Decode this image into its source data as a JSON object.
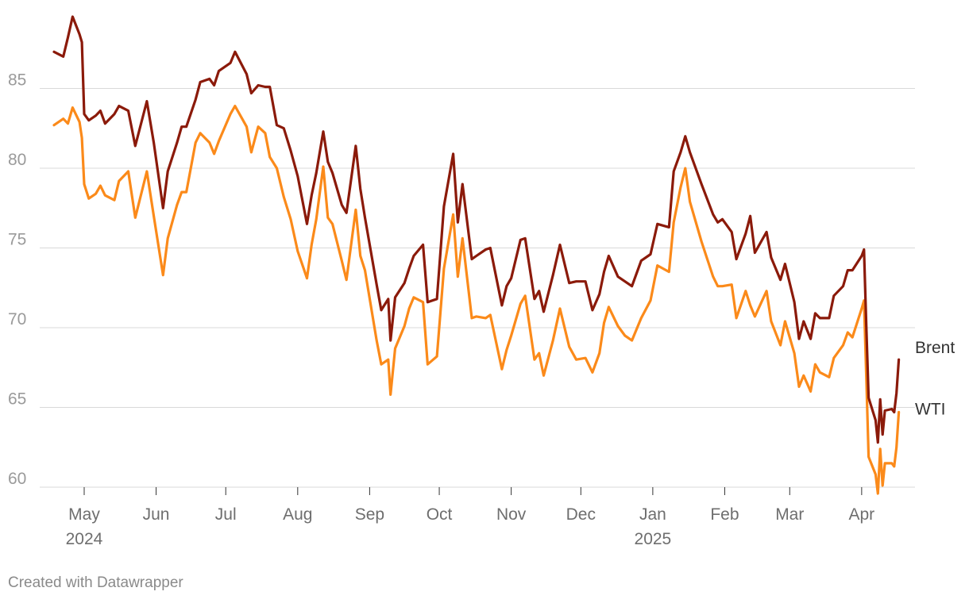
{
  "chart_data": {
    "type": "line",
    "title": "",
    "xlabel": "",
    "ylabel": "",
    "ylim": [
      60,
      88
    ],
    "yticks": [
      60,
      65,
      70,
      75,
      80,
      85
    ],
    "grid": true,
    "x_range": [
      "2024-04-18",
      "2025-04-17"
    ],
    "x_ticks": [
      {
        "date": "2024-05-01",
        "label": "May",
        "sublabel": "2024"
      },
      {
        "date": "2024-06-01",
        "label": "Jun",
        "sublabel": ""
      },
      {
        "date": "2024-07-01",
        "label": "Jul",
        "sublabel": ""
      },
      {
        "date": "2024-08-01",
        "label": "Aug",
        "sublabel": ""
      },
      {
        "date": "2024-09-01",
        "label": "Sep",
        "sublabel": ""
      },
      {
        "date": "2024-10-01",
        "label": "Oct",
        "sublabel": ""
      },
      {
        "date": "2024-11-01",
        "label": "Nov",
        "sublabel": ""
      },
      {
        "date": "2024-12-01",
        "label": "Dec",
        "sublabel": ""
      },
      {
        "date": "2025-01-01",
        "label": "Jan",
        "sublabel": "2025"
      },
      {
        "date": "2025-02-01",
        "label": "Feb",
        "sublabel": ""
      },
      {
        "date": "2025-03-01",
        "label": "Mar",
        "sublabel": ""
      },
      {
        "date": "2025-04-01",
        "label": "Apr",
        "sublabel": ""
      }
    ],
    "legend": "direct labels at line ends (right)",
    "series": [
      {
        "name": "Brent",
        "color": "#8b1a0a",
        "points": [
          [
            "2024-04-18",
            87.3
          ],
          [
            "2024-04-22",
            87.0
          ],
          [
            "2024-04-24",
            88.2
          ],
          [
            "2024-04-26",
            89.5
          ],
          [
            "2024-04-29",
            88.4
          ],
          [
            "2024-04-30",
            87.9
          ],
          [
            "2024-05-01",
            83.4
          ],
          [
            "2024-05-03",
            83.0
          ],
          [
            "2024-05-06",
            83.3
          ],
          [
            "2024-05-08",
            83.6
          ],
          [
            "2024-05-10",
            82.8
          ],
          [
            "2024-05-14",
            83.4
          ],
          [
            "2024-05-16",
            83.9
          ],
          [
            "2024-05-20",
            83.6
          ],
          [
            "2024-05-23",
            81.4
          ],
          [
            "2024-05-28",
            84.2
          ],
          [
            "2024-05-31",
            81.6
          ],
          [
            "2024-06-04",
            77.5
          ],
          [
            "2024-06-06",
            79.8
          ],
          [
            "2024-06-10",
            81.6
          ],
          [
            "2024-06-12",
            82.6
          ],
          [
            "2024-06-14",
            82.6
          ],
          [
            "2024-06-18",
            84.3
          ],
          [
            "2024-06-20",
            85.4
          ],
          [
            "2024-06-24",
            85.6
          ],
          [
            "2024-06-26",
            85.2
          ],
          [
            "2024-06-28",
            86.1
          ],
          [
            "2024-07-03",
            86.6
          ],
          [
            "2024-07-05",
            87.3
          ],
          [
            "2024-07-10",
            85.9
          ],
          [
            "2024-07-12",
            84.7
          ],
          [
            "2024-07-15",
            85.2
          ],
          [
            "2024-07-18",
            85.1
          ],
          [
            "2024-07-20",
            85.1
          ],
          [
            "2024-07-23",
            82.7
          ],
          [
            "2024-07-26",
            82.5
          ],
          [
            "2024-07-29",
            81.1
          ],
          [
            "2024-08-01",
            79.5
          ],
          [
            "2024-08-05",
            76.5
          ],
          [
            "2024-08-07",
            78.3
          ],
          [
            "2024-08-09",
            79.7
          ],
          [
            "2024-08-12",
            82.3
          ],
          [
            "2024-08-14",
            80.4
          ],
          [
            "2024-08-16",
            79.7
          ],
          [
            "2024-08-20",
            77.7
          ],
          [
            "2024-08-22",
            77.2
          ],
          [
            "2024-08-26",
            81.4
          ],
          [
            "2024-08-28",
            78.7
          ],
          [
            "2024-08-30",
            76.9
          ],
          [
            "2024-09-04",
            72.7
          ],
          [
            "2024-09-06",
            71.1
          ],
          [
            "2024-09-09",
            71.8
          ],
          [
            "2024-09-10",
            69.2
          ],
          [
            "2024-09-12",
            71.9
          ],
          [
            "2024-09-16",
            72.8
          ],
          [
            "2024-09-18",
            73.7
          ],
          [
            "2024-09-20",
            74.5
          ],
          [
            "2024-09-24",
            75.2
          ],
          [
            "2024-09-26",
            71.6
          ],
          [
            "2024-09-30",
            71.8
          ],
          [
            "2024-10-03",
            77.6
          ],
          [
            "2024-10-07",
            80.9
          ],
          [
            "2024-10-09",
            76.6
          ],
          [
            "2024-10-11",
            79.0
          ],
          [
            "2024-10-15",
            74.3
          ],
          [
            "2024-10-17",
            74.5
          ],
          [
            "2024-10-21",
            74.9
          ],
          [
            "2024-10-23",
            75.0
          ],
          [
            "2024-10-28",
            71.4
          ],
          [
            "2024-10-30",
            72.6
          ],
          [
            "2024-11-01",
            73.1
          ],
          [
            "2024-11-05",
            75.5
          ],
          [
            "2024-11-07",
            75.6
          ],
          [
            "2024-11-11",
            71.8
          ],
          [
            "2024-11-13",
            72.3
          ],
          [
            "2024-11-15",
            71.0
          ],
          [
            "2024-11-19",
            73.3
          ],
          [
            "2024-11-22",
            75.2
          ],
          [
            "2024-11-26",
            72.8
          ],
          [
            "2024-11-29",
            72.9
          ],
          [
            "2024-12-03",
            72.9
          ],
          [
            "2024-12-06",
            71.1
          ],
          [
            "2024-12-09",
            72.1
          ],
          [
            "2024-12-11",
            73.5
          ],
          [
            "2024-12-13",
            74.5
          ],
          [
            "2024-12-17",
            73.2
          ],
          [
            "2024-12-20",
            72.9
          ],
          [
            "2024-12-23",
            72.6
          ],
          [
            "2024-12-27",
            74.2
          ],
          [
            "2024-12-31",
            74.6
          ],
          [
            "2025-01-03",
            76.5
          ],
          [
            "2025-01-08",
            76.3
          ],
          [
            "2025-01-10",
            79.8
          ],
          [
            "2025-01-13",
            81.0
          ],
          [
            "2025-01-15",
            82.0
          ],
          [
            "2025-01-17",
            81.0
          ],
          [
            "2025-01-22",
            79.0
          ],
          [
            "2025-01-27",
            77.1
          ],
          [
            "2025-01-29",
            76.6
          ],
          [
            "2025-01-31",
            76.8
          ],
          [
            "2025-02-04",
            76.0
          ],
          [
            "2025-02-06",
            74.3
          ],
          [
            "2025-02-10",
            75.9
          ],
          [
            "2025-02-12",
            77.0
          ],
          [
            "2025-02-14",
            74.7
          ],
          [
            "2025-02-19",
            76.0
          ],
          [
            "2025-02-21",
            74.4
          ],
          [
            "2025-02-25",
            73.0
          ],
          [
            "2025-02-27",
            74.0
          ],
          [
            "2025-03-03",
            71.6
          ],
          [
            "2025-03-05",
            69.3
          ],
          [
            "2025-03-07",
            70.4
          ],
          [
            "2025-03-10",
            69.3
          ],
          [
            "2025-03-12",
            70.9
          ],
          [
            "2025-03-14",
            70.6
          ],
          [
            "2025-03-18",
            70.6
          ],
          [
            "2025-03-20",
            72.0
          ],
          [
            "2025-03-24",
            72.6
          ],
          [
            "2025-03-26",
            73.6
          ],
          [
            "2025-03-28",
            73.6
          ],
          [
            "2025-04-01",
            74.5
          ],
          [
            "2025-04-02",
            74.9
          ],
          [
            "2025-04-03",
            70.1
          ],
          [
            "2025-04-04",
            65.6
          ],
          [
            "2025-04-07",
            64.2
          ],
          [
            "2025-04-08",
            62.8
          ],
          [
            "2025-04-09",
            65.5
          ],
          [
            "2025-04-10",
            63.3
          ],
          [
            "2025-04-11",
            64.8
          ],
          [
            "2025-04-14",
            64.9
          ],
          [
            "2025-04-15",
            64.7
          ],
          [
            "2025-04-16",
            65.9
          ],
          [
            "2025-04-17",
            68.0
          ]
        ]
      },
      {
        "name": "WTI",
        "color": "#fb8a1a",
        "points": [
          [
            "2024-04-18",
            82.7
          ],
          [
            "2024-04-22",
            83.1
          ],
          [
            "2024-04-24",
            82.8
          ],
          [
            "2024-04-26",
            83.8
          ],
          [
            "2024-04-29",
            82.9
          ],
          [
            "2024-04-30",
            81.9
          ],
          [
            "2024-05-01",
            79.0
          ],
          [
            "2024-05-03",
            78.1
          ],
          [
            "2024-05-06",
            78.4
          ],
          [
            "2024-05-08",
            78.9
          ],
          [
            "2024-05-10",
            78.3
          ],
          [
            "2024-05-14",
            78.0
          ],
          [
            "2024-05-16",
            79.2
          ],
          [
            "2024-05-20",
            79.8
          ],
          [
            "2024-05-23",
            76.9
          ],
          [
            "2024-05-28",
            79.8
          ],
          [
            "2024-05-31",
            77.0
          ],
          [
            "2024-06-04",
            73.3
          ],
          [
            "2024-06-06",
            75.6
          ],
          [
            "2024-06-10",
            77.7
          ],
          [
            "2024-06-12",
            78.5
          ],
          [
            "2024-06-14",
            78.5
          ],
          [
            "2024-06-18",
            81.6
          ],
          [
            "2024-06-20",
            82.2
          ],
          [
            "2024-06-24",
            81.6
          ],
          [
            "2024-06-26",
            80.9
          ],
          [
            "2024-06-28",
            81.7
          ],
          [
            "2024-07-03",
            83.4
          ],
          [
            "2024-07-05",
            83.9
          ],
          [
            "2024-07-10",
            82.6
          ],
          [
            "2024-07-12",
            81.0
          ],
          [
            "2024-07-15",
            82.6
          ],
          [
            "2024-07-18",
            82.2
          ],
          [
            "2024-07-20",
            80.7
          ],
          [
            "2024-07-23",
            80.0
          ],
          [
            "2024-07-26",
            78.2
          ],
          [
            "2024-07-29",
            76.8
          ],
          [
            "2024-08-01",
            74.8
          ],
          [
            "2024-08-05",
            73.1
          ],
          [
            "2024-08-07",
            75.2
          ],
          [
            "2024-08-09",
            76.8
          ],
          [
            "2024-08-12",
            80.1
          ],
          [
            "2024-08-14",
            76.9
          ],
          [
            "2024-08-16",
            76.5
          ],
          [
            "2024-08-20",
            74.2
          ],
          [
            "2024-08-22",
            73.0
          ],
          [
            "2024-08-26",
            77.4
          ],
          [
            "2024-08-28",
            74.5
          ],
          [
            "2024-08-30",
            73.6
          ],
          [
            "2024-09-04",
            69.2
          ],
          [
            "2024-09-06",
            67.7
          ],
          [
            "2024-09-09",
            68.0
          ],
          [
            "2024-09-10",
            65.8
          ],
          [
            "2024-09-12",
            68.7
          ],
          [
            "2024-09-16",
            70.1
          ],
          [
            "2024-09-18",
            71.2
          ],
          [
            "2024-09-20",
            71.9
          ],
          [
            "2024-09-24",
            71.6
          ],
          [
            "2024-09-26",
            67.7
          ],
          [
            "2024-09-30",
            68.2
          ],
          [
            "2024-10-03",
            73.7
          ],
          [
            "2024-10-07",
            77.1
          ],
          [
            "2024-10-09",
            73.2
          ],
          [
            "2024-10-11",
            75.6
          ],
          [
            "2024-10-15",
            70.6
          ],
          [
            "2024-10-17",
            70.7
          ],
          [
            "2024-10-21",
            70.6
          ],
          [
            "2024-10-23",
            70.8
          ],
          [
            "2024-10-28",
            67.4
          ],
          [
            "2024-10-30",
            68.6
          ],
          [
            "2024-11-01",
            69.5
          ],
          [
            "2024-11-05",
            71.5
          ],
          [
            "2024-11-07",
            72.0
          ],
          [
            "2024-11-11",
            68.0
          ],
          [
            "2024-11-13",
            68.4
          ],
          [
            "2024-11-15",
            67.0
          ],
          [
            "2024-11-19",
            69.2
          ],
          [
            "2024-11-22",
            71.2
          ],
          [
            "2024-11-26",
            68.8
          ],
          [
            "2024-11-29",
            68.0
          ],
          [
            "2024-12-03",
            68.1
          ],
          [
            "2024-12-06",
            67.2
          ],
          [
            "2024-12-09",
            68.4
          ],
          [
            "2024-12-11",
            70.3
          ],
          [
            "2024-12-13",
            71.3
          ],
          [
            "2024-12-17",
            70.1
          ],
          [
            "2024-12-20",
            69.5
          ],
          [
            "2024-12-23",
            69.2
          ],
          [
            "2024-12-27",
            70.6
          ],
          [
            "2024-12-31",
            71.7
          ],
          [
            "2025-01-03",
            73.9
          ],
          [
            "2025-01-08",
            73.5
          ],
          [
            "2025-01-10",
            76.6
          ],
          [
            "2025-01-13",
            78.8
          ],
          [
            "2025-01-15",
            80.0
          ],
          [
            "2025-01-17",
            77.9
          ],
          [
            "2025-01-22",
            75.4
          ],
          [
            "2025-01-27",
            73.2
          ],
          [
            "2025-01-29",
            72.6
          ],
          [
            "2025-01-31",
            72.6
          ],
          [
            "2025-02-04",
            72.7
          ],
          [
            "2025-02-06",
            70.6
          ],
          [
            "2025-02-10",
            72.3
          ],
          [
            "2025-02-12",
            71.4
          ],
          [
            "2025-02-14",
            70.7
          ],
          [
            "2025-02-19",
            72.3
          ],
          [
            "2025-02-21",
            70.4
          ],
          [
            "2025-02-25",
            68.9
          ],
          [
            "2025-02-27",
            70.4
          ],
          [
            "2025-03-03",
            68.4
          ],
          [
            "2025-03-05",
            66.3
          ],
          [
            "2025-03-07",
            67.0
          ],
          [
            "2025-03-10",
            66.0
          ],
          [
            "2025-03-12",
            67.7
          ],
          [
            "2025-03-14",
            67.2
          ],
          [
            "2025-03-18",
            66.9
          ],
          [
            "2025-03-20",
            68.1
          ],
          [
            "2025-03-24",
            68.9
          ],
          [
            "2025-03-26",
            69.7
          ],
          [
            "2025-03-28",
            69.4
          ],
          [
            "2025-04-01",
            71.2
          ],
          [
            "2025-04-02",
            71.7
          ],
          [
            "2025-04-03",
            66.9
          ],
          [
            "2025-04-04",
            61.9
          ],
          [
            "2025-04-07",
            60.8
          ],
          [
            "2025-04-08",
            59.6
          ],
          [
            "2025-04-09",
            62.4
          ],
          [
            "2025-04-10",
            60.1
          ],
          [
            "2025-04-11",
            61.5
          ],
          [
            "2025-04-14",
            61.5
          ],
          [
            "2025-04-15",
            61.3
          ],
          [
            "2025-04-16",
            62.5
          ],
          [
            "2025-04-17",
            64.7
          ]
        ]
      }
    ]
  },
  "footer": {
    "credit": "Created with Datawrapper"
  }
}
